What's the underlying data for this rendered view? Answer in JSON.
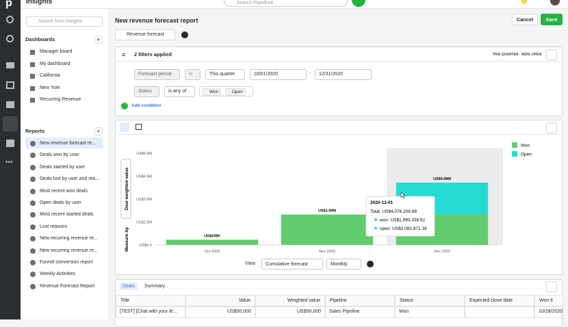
{
  "app": {
    "logo": "p",
    "section": "Insights",
    "search_placeholder": "Search Pipedrive"
  },
  "sidebar": {
    "search_placeholder": "Search from Insights",
    "dashboards_heading": "Dashboards",
    "dashboards": [
      "Manager board",
      "My dashboard",
      "California",
      "New York",
      "Recurring Revenue"
    ],
    "reports_heading": "Reports",
    "reports": [
      "New revenue forecast re...",
      "Deals won by user",
      "Deals started by user",
      "Deals lost by user and rea...",
      "Most recent won deals",
      "Open deals by user",
      "Most recent started deals",
      "Lost reasons",
      "New recurring revenue re...",
      "New recurring revenue re...",
      "Funnel conversion report",
      "Weekly Activities",
      "Revenue Forecast Report"
    ]
  },
  "header": {
    "title": "New revenue forecast report",
    "cancel": "Cancel",
    "save": "Save",
    "report_type": "Revenue forecast"
  },
  "filters": {
    "summary": "2 filters applied",
    "badge": "THIS QUARTER · WON, OPEN",
    "row1": {
      "field": "Forecast period",
      "operator": "is",
      "period": "This quarter",
      "start": "10/01/2020",
      "separator": "-",
      "end": "12/31/2020"
    },
    "row2": {
      "field": "Status",
      "operator": "is any of",
      "tags": [
        "Won",
        "Open"
      ]
    },
    "add": "Add condition"
  },
  "chart_data": {
    "type": "bar",
    "stacked": true,
    "y_label": "Deal weighted value",
    "categories": [
      "Oct 2020",
      "Nov 2020",
      "Dec 2020"
    ],
    "series": [
      {
        "name": "Won",
        "color": "#62cd6f",
        "values": [
          339000,
          1990000,
          1993338.52
        ]
      },
      {
        "name": "Open",
        "color": "#26dbd5",
        "values": [
          null,
          null,
          2082871.16
        ]
      }
    ],
    "totals": [
      339000,
      1990000,
      4076209.68
    ],
    "total_labels": [
      "US$339K",
      "US$1.99M",
      "US$4.08M"
    ],
    "ylim": [
      0,
      6000000
    ],
    "yticks": [
      {
        "value": 0,
        "label": "US$0.0"
      },
      {
        "value": 1500000,
        "label": "US$1.5M"
      },
      {
        "value": 3000000,
        "label": "US$3.0M"
      },
      {
        "value": 4500000,
        "label": "US$4.5M"
      },
      {
        "value": 6000000,
        "label": "US$6.0M"
      }
    ],
    "grid": false,
    "legend": "right",
    "tooltip": {
      "date": "2020-12-01",
      "total": "Total: US$4,076,209.68",
      "lines": [
        "won: US$1,993,338.52",
        "open: US$2,082,871.16"
      ]
    }
  },
  "controls": {
    "measure_label": "Measure by",
    "view_label": "View",
    "view": "Cumulative forecast",
    "interval": "Monthly"
  },
  "tabs": [
    "Deals",
    "Summary"
  ],
  "table": {
    "columns": [
      "Title",
      "Value",
      "Weighted value",
      "Pipeline",
      "Status",
      "Expected close date",
      "Won ti"
    ],
    "rows": [
      {
        "title": "[TEST] [Chat with your le...",
        "value": "US$50,000",
        "weighted_value": "US$50,000",
        "pipeline": "Sales Pipeline",
        "status": "Won",
        "won_time": "10/28/2020"
      }
    ]
  }
}
